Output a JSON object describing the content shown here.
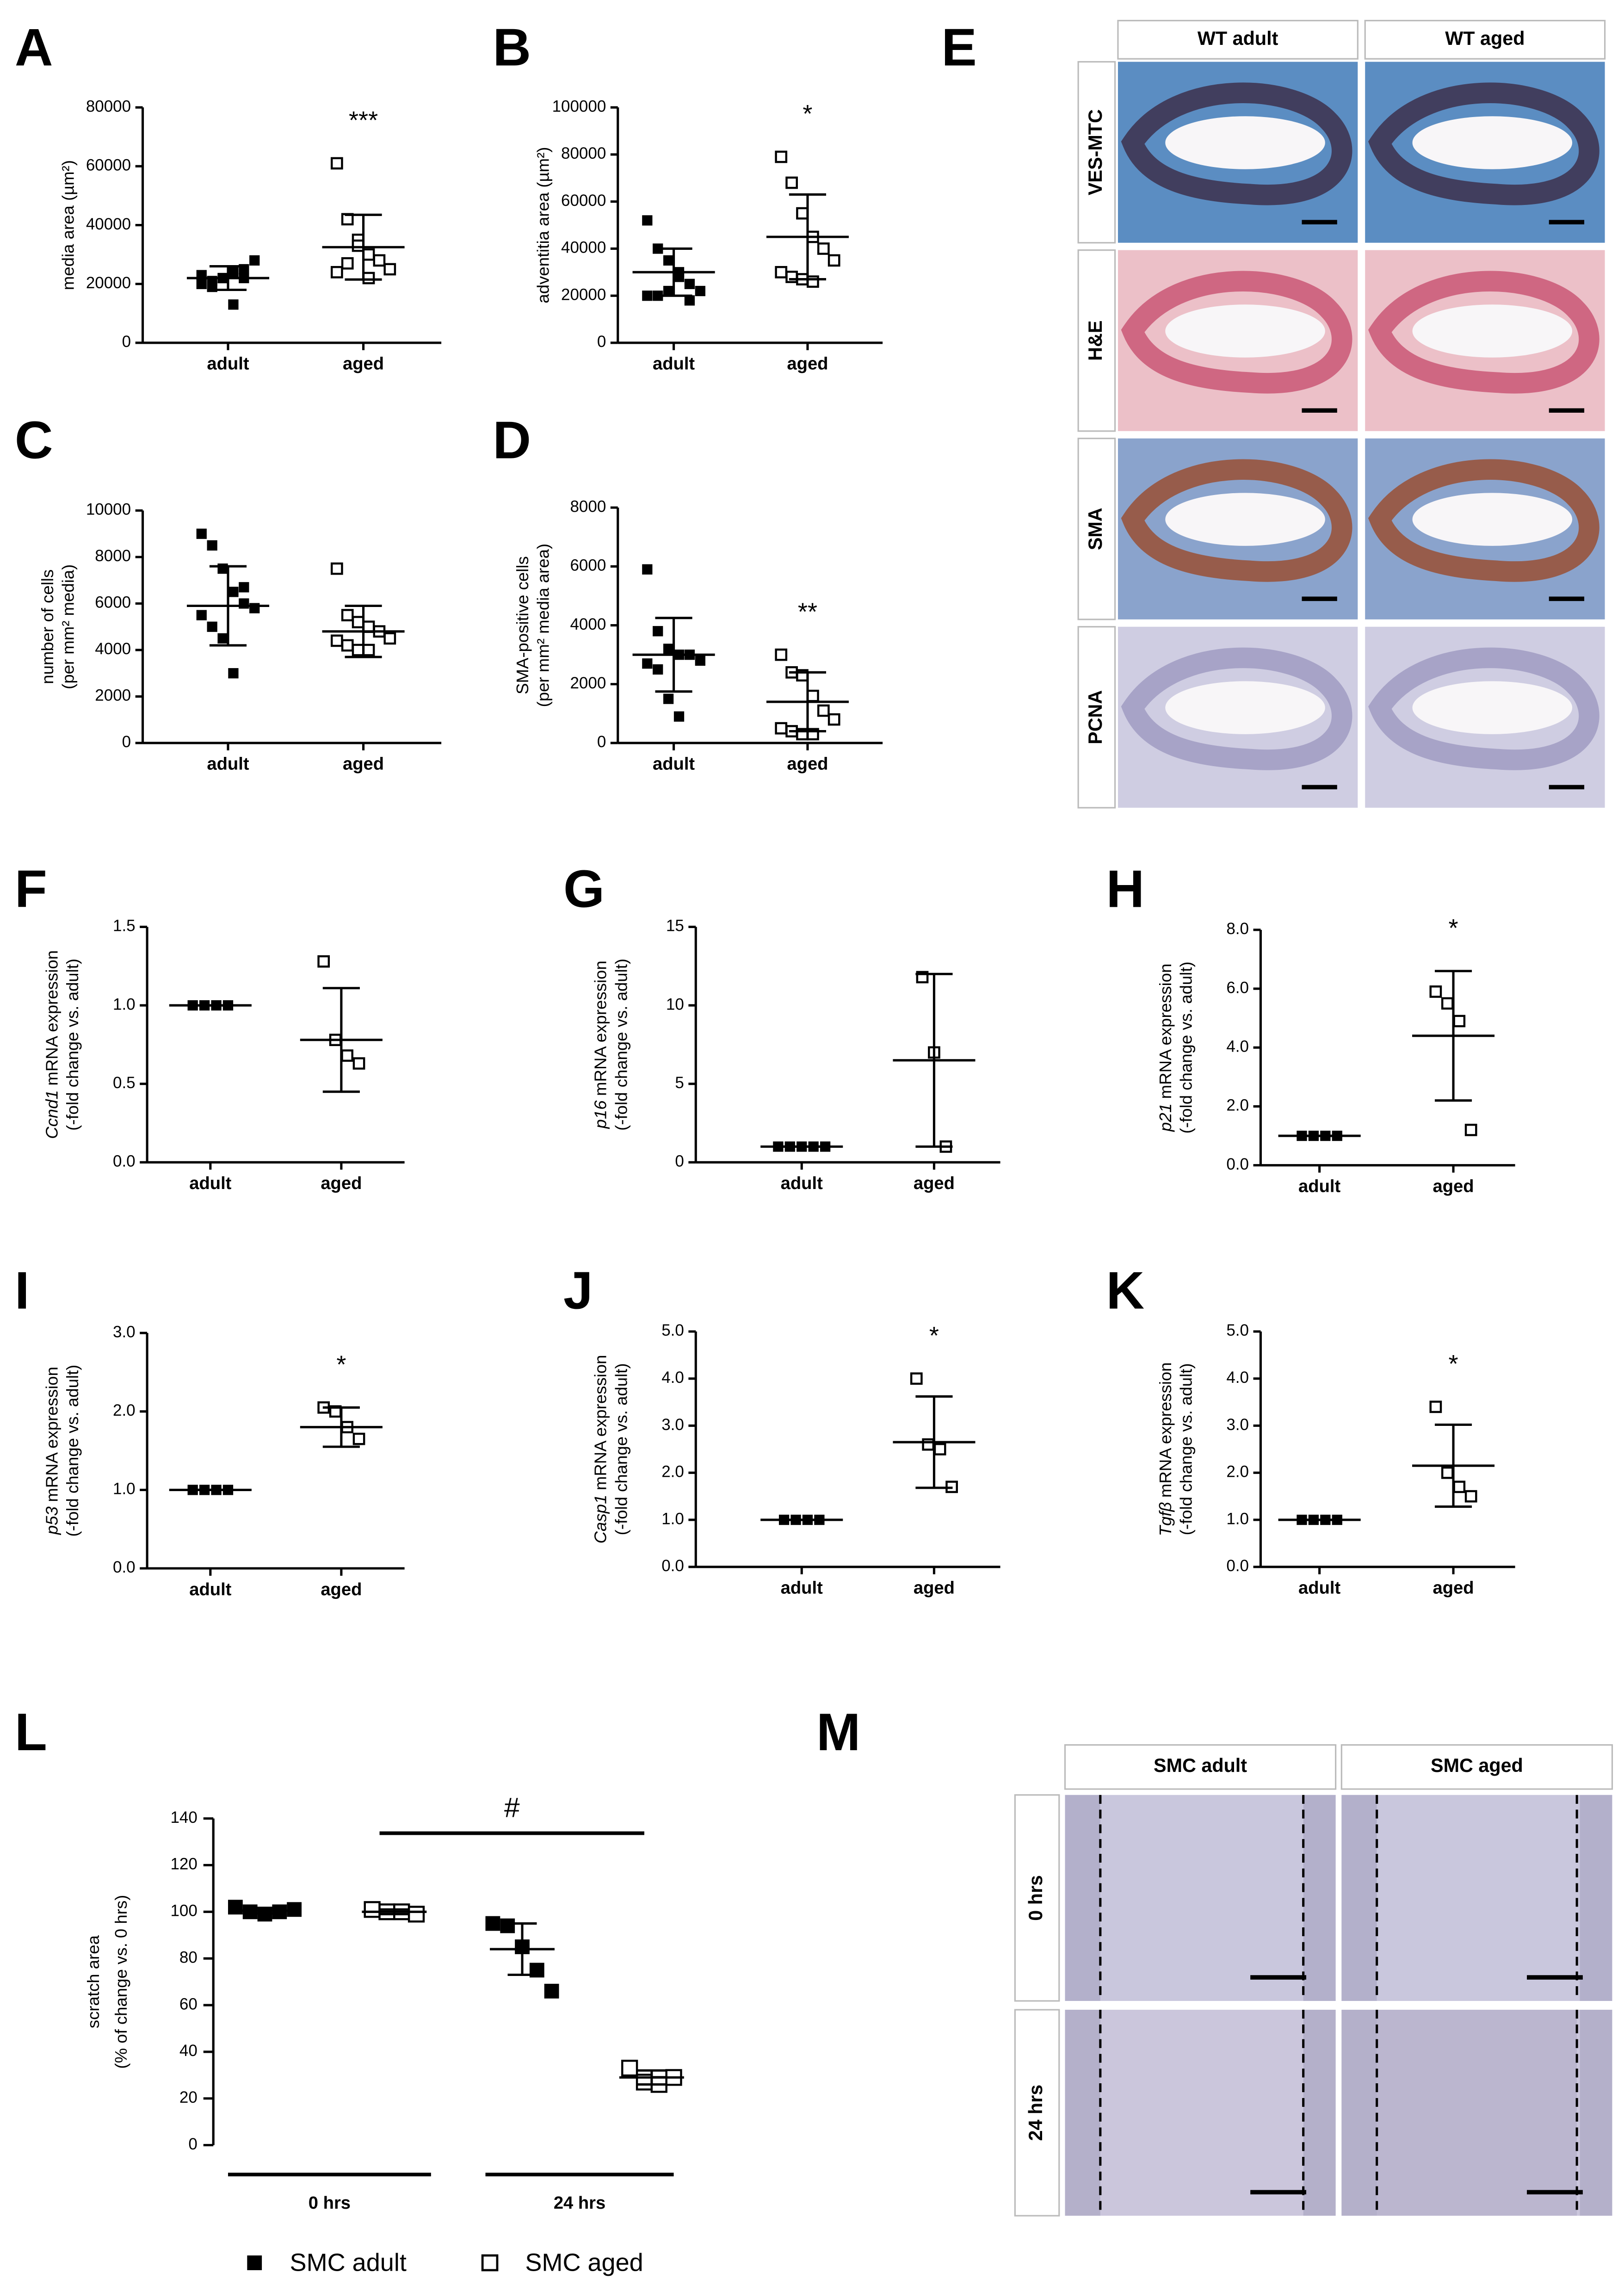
{
  "chart_data": [
    {
      "type": "dotplot",
      "panel": "A",
      "ylabel": [
        "media area (µm²)"
      ],
      "categories": [
        "adult",
        "aged"
      ],
      "ylim": [
        0,
        80000
      ],
      "yticks": [
        0,
        20000,
        40000,
        60000,
        80000
      ],
      "markers": [
        "filled",
        "open"
      ],
      "points": [
        [
          23000,
          21000,
          22000,
          24000,
          25000,
          28000,
          20000,
          19000,
          22000,
          13000,
          22000
        ],
        [
          61000,
          42000,
          35000,
          30000,
          28000,
          25000,
          24000,
          27000,
          33000,
          22000
        ]
      ],
      "means": [
        22000,
        32500
      ],
      "sd": [
        4000,
        11000
      ],
      "annotation": "***"
    },
    {
      "type": "dotplot",
      "panel": "B",
      "ylabel": [
        "adventitia area (µm²)"
      ],
      "categories": [
        "adult",
        "aged"
      ],
      "ylim": [
        0,
        100000
      ],
      "yticks": [
        0,
        20000,
        40000,
        60000,
        80000,
        100000
      ],
      "markers": [
        "filled",
        "open"
      ],
      "points": [
        [
          52000,
          40000,
          35000,
          28000,
          25000,
          22000,
          20000,
          20000,
          22000,
          30000,
          18000
        ],
        [
          79000,
          68000,
          55000,
          45000,
          40000,
          35000,
          30000,
          28000,
          27000,
          26000
        ]
      ],
      "means": [
        30000,
        45000
      ],
      "sd": [
        10000,
        18000
      ],
      "annotation": "*"
    },
    {
      "type": "dotplot",
      "panel": "C",
      "ylabel": [
        "number of cells",
        "(per mm² media)"
      ],
      "categories": [
        "adult",
        "aged"
      ],
      "ylim": [
        0,
        10000
      ],
      "yticks": [
        0,
        2000,
        4000,
        6000,
        8000,
        10000
      ],
      "markers": [
        "filled",
        "open"
      ],
      "points": [
        [
          9000,
          8500,
          7500,
          6500,
          6000,
          5800,
          5500,
          5000,
          4500,
          3000,
          6700
        ],
        [
          7500,
          5500,
          5200,
          5000,
          4800,
          4500,
          4400,
          4200,
          4000,
          4000
        ]
      ],
      "means": [
        5900,
        4800
      ],
      "sd": [
        1700,
        1100
      ]
    },
    {
      "type": "dotplot",
      "panel": "D",
      "ylabel": [
        "SMA-positive cells",
        "(per mm² media area)"
      ],
      "categories": [
        "adult",
        "aged"
      ],
      "ylim": [
        0,
        8000
      ],
      "yticks": [
        0,
        2000,
        4000,
        6000,
        8000
      ],
      "markers": [
        "filled",
        "open"
      ],
      "points": [
        [
          5900,
          3800,
          3200,
          3000,
          3000,
          2800,
          2700,
          2500,
          1500,
          900
        ],
        [
          3000,
          2400,
          2300,
          1600,
          1100,
          800,
          500,
          400,
          300,
          300
        ]
      ],
      "means": [
        3000,
        1400
      ],
      "sd": [
        1250,
        1000
      ],
      "annotation": "**"
    },
    {
      "type": "dotplot",
      "panel": "F",
      "gene": "Ccnd1",
      "ylabel": [
        "mRNA expression",
        "(-fold change vs. adult)"
      ],
      "categories": [
        "adult",
        "aged"
      ],
      "ylim": [
        0,
        1.5
      ],
      "yticks": [
        {
          "value": 0,
          "label": "0.0"
        },
        0.5,
        {
          "value": 1,
          "label": "1.0"
        },
        1.5
      ],
      "markers": [
        "filled",
        "open"
      ],
      "points": [
        [
          1,
          1,
          1,
          1
        ],
        [
          1.28,
          0.78,
          0.68,
          0.63
        ]
      ],
      "means": [
        1,
        0.78
      ],
      "sd": [
        0,
        0.33
      ]
    },
    {
      "type": "dotplot",
      "panel": "G",
      "gene": "p16",
      "ylabel": [
        "mRNA expression",
        "(-fold change vs. adult)"
      ],
      "categories": [
        "adult",
        "aged"
      ],
      "ylim": [
        0,
        15
      ],
      "yticks": [
        0,
        5,
        10,
        15
      ],
      "markers": [
        "filled",
        "open"
      ],
      "points": [
        [
          1,
          1,
          1,
          1,
          1
        ],
        [
          11.8,
          7,
          1
        ]
      ],
      "means": [
        1,
        6.5
      ],
      "sd": [
        0,
        5.5
      ]
    },
    {
      "type": "dotplot",
      "panel": "H",
      "gene": "p21",
      "ylabel": [
        "mRNA expression",
        "(-fold change vs. adult)"
      ],
      "categories": [
        "adult",
        "aged"
      ],
      "ylim": [
        0,
        8
      ],
      "yticks": [
        {
          "value": 0,
          "label": "0.0"
        },
        {
          "value": 2,
          "label": "2.0"
        },
        {
          "value": 4,
          "label": "4.0"
        },
        {
          "value": 6,
          "label": "6.0"
        },
        {
          "value": 8,
          "label": "8.0"
        }
      ],
      "markers": [
        "filled",
        "open"
      ],
      "points": [
        [
          1,
          1,
          1,
          1
        ],
        [
          5.9,
          5.5,
          4.9,
          1.2
        ]
      ],
      "means": [
        1,
        4.4
      ],
      "sd": [
        0,
        2.2
      ],
      "annotation": "*"
    },
    {
      "type": "dotplot",
      "panel": "I",
      "gene": "p53",
      "ylabel": [
        "mRNA expression",
        "(-fold change vs. adult)"
      ],
      "categories": [
        "adult",
        "aged"
      ],
      "ylim": [
        0,
        3
      ],
      "yticks": [
        {
          "value": 0,
          "label": "0.0"
        },
        {
          "value": 1,
          "label": "1.0"
        },
        {
          "value": 2,
          "label": "2.0"
        },
        {
          "value": 3,
          "label": "3.0"
        }
      ],
      "markers": [
        "filled",
        "open"
      ],
      "points": [
        [
          1,
          1,
          1,
          1
        ],
        [
          2.05,
          2.0,
          1.8,
          1.65
        ]
      ],
      "means": [
        1,
        1.8
      ],
      "sd": [
        0,
        0.25
      ],
      "annotation": "*"
    },
    {
      "type": "dotplot",
      "panel": "J",
      "gene": "Casp1",
      "ylabel": [
        "mRNA expression",
        "(-fold change vs. adult)"
      ],
      "categories": [
        "adult",
        "aged"
      ],
      "ylim": [
        0,
        5
      ],
      "yticks": [
        {
          "value": 0,
          "label": "0.0"
        },
        {
          "value": 1,
          "label": "1.0"
        },
        {
          "value": 2,
          "label": "2.0"
        },
        {
          "value": 3,
          "label": "3.0"
        },
        {
          "value": 4,
          "label": "4.0"
        },
        {
          "value": 5,
          "label": "5.0"
        }
      ],
      "markers": [
        "filled",
        "open"
      ],
      "points": [
        [
          1,
          1,
          1,
          1
        ],
        [
          4.0,
          2.6,
          2.5,
          1.7
        ]
      ],
      "means": [
        1,
        2.65
      ],
      "sd": [
        0,
        0.97
      ],
      "annotation": "*"
    },
    {
      "type": "dotplot",
      "panel": "K",
      "gene": "Tgfβ",
      "ylabel": [
        "mRNA expression",
        "(-fold change vs. adult)"
      ],
      "categories": [
        "adult",
        "aged"
      ],
      "ylim": [
        0,
        5
      ],
      "yticks": [
        {
          "value": 0,
          "label": "0.0"
        },
        {
          "value": 1,
          "label": "1.0"
        },
        {
          "value": 2,
          "label": "2.0"
        },
        {
          "value": 3,
          "label": "3.0"
        },
        {
          "value": 4,
          "label": "4.0"
        },
        {
          "value": 5,
          "label": "5.0"
        }
      ],
      "markers": [
        "filled",
        "open"
      ],
      "points": [
        [
          1,
          1,
          1,
          1
        ],
        [
          3.4,
          2.0,
          1.7,
          1.5
        ]
      ],
      "means": [
        1,
        2.15
      ],
      "sd": [
        0,
        0.87
      ],
      "annotation": "*"
    },
    {
      "type": "grouped_dotplot",
      "panel": "L",
      "ylabel": [
        "scratch area",
        "(% of change vs. 0 hrs)"
      ],
      "categories": [
        "0 hrs",
        "24 hrs"
      ],
      "ylim": [
        0,
        140
      ],
      "yticks": [
        0,
        20,
        40,
        60,
        80,
        100,
        120,
        140
      ],
      "annotation": "#",
      "series": [
        {
          "name": "SMC adult",
          "marker": "filled",
          "points": [
            [
              102,
              100,
              99,
              100,
              101
            ],
            [
              95,
              94,
              85,
              75,
              66
            ]
          ],
          "means": [
            100.5,
            84
          ],
          "sd": [
            1.2,
            11
          ]
        },
        {
          "name": "SMC aged",
          "marker": "open",
          "points": [
            [
              101,
              100,
              100,
              99
            ],
            [
              33,
              27,
              26,
              29
            ]
          ],
          "means": [
            100,
            29
          ],
          "sd": [
            1,
            3
          ]
        }
      ]
    }
  ],
  "images": [
    {
      "panel": "E",
      "columns": [
        "WT adult",
        "WT aged"
      ],
      "rows": [
        "VES-MTC",
        "H&E",
        "SMA",
        "PCNA"
      ]
    },
    {
      "panel": "M",
      "columns": [
        "SMC adult",
        "SMC aged"
      ],
      "rows": [
        "0 hrs",
        "24 hrs"
      ]
    }
  ]
}
